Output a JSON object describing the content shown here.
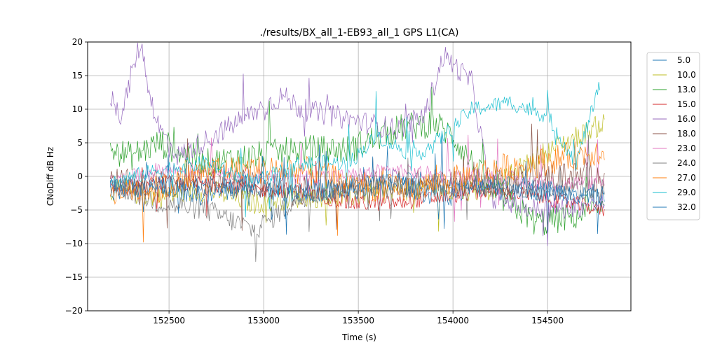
{
  "chart_data": {
    "type": "line",
    "title": "./results/BX_all_1-EB93_all_1 GPS L1(CA)",
    "xlabel": "Time (s)",
    "ylabel": "CNoDiff dB Hz",
    "xlim": [
      152070,
      154940
    ],
    "ylim": [
      -20,
      20
    ],
    "x_ticks": [
      152500,
      153000,
      153500,
      154000,
      154500
    ],
    "y_ticks": [
      -20,
      -15,
      -10,
      -5,
      0,
      5,
      10,
      15,
      20
    ],
    "grid": true,
    "legend_position": "outside-right",
    "series": [
      {
        "name": "5.0",
        "color": "#1f77b4",
        "x": [
          152190,
          152450,
          152700,
          152950,
          153200,
          153450,
          153700,
          153950,
          154200,
          154450,
          154800
        ],
        "y": [
          -1,
          -2,
          -1,
          -2,
          -3,
          -2,
          0,
          -1,
          -2,
          -2,
          -3
        ]
      },
      {
        "name": "10.0",
        "color": "#bcbd22",
        "x": [
          152190,
          152450,
          152700,
          152950,
          153200,
          153450,
          153700,
          153950,
          154200,
          154450,
          154800
        ],
        "y": [
          -2,
          -3,
          -2,
          -4,
          -3,
          -3,
          -2,
          -2,
          -2,
          3,
          8
        ]
      },
      {
        "name": "13.0",
        "color": "#2ca02c",
        "x": [
          152190,
          152300,
          152450,
          152700,
          152950,
          153200,
          153450,
          153700,
          153900,
          154000,
          154200,
          154450,
          154800
        ],
        "y": [
          4,
          3,
          5,
          2,
          3,
          4,
          4,
          7,
          8,
          6,
          -2,
          -7,
          -5
        ]
      },
      {
        "name": "15.0",
        "color": "#d62728",
        "x": [
          152190,
          152450,
          152700,
          152950,
          153200,
          153450,
          153700,
          153950,
          154200,
          154450,
          154800
        ],
        "y": [
          -2,
          -1,
          -1,
          -2,
          -2,
          -4,
          -4,
          -3,
          -2,
          -3,
          -5
        ]
      },
      {
        "name": "16.0",
        "color": "#9467bd",
        "x": [
          152190,
          152250,
          152300,
          152350,
          152400,
          152450,
          152550,
          153100,
          153200,
          153700,
          153850,
          153950,
          154100,
          154200,
          154450,
          154800
        ],
        "y": [
          12,
          9,
          15,
          20,
          12,
          7,
          3,
          12,
          10,
          7,
          9,
          18,
          14,
          -3,
          -5,
          -4
        ]
      },
      {
        "name": "18.0",
        "color": "#8c564b",
        "x": [
          152190,
          152450,
          152700,
          152950,
          153200,
          153450,
          153700,
          153950,
          154200,
          154450,
          154800
        ],
        "y": [
          -1,
          -1,
          -1,
          -1,
          -2,
          -2,
          -1,
          -1,
          -1,
          0,
          0
        ]
      },
      {
        "name": "23.0",
        "color": "#e377c2",
        "x": [
          152190,
          152450,
          152700,
          152950,
          153200,
          153450,
          153700,
          153950,
          154200,
          154450,
          154800
        ],
        "y": [
          -1,
          1,
          1,
          0,
          0,
          0,
          1,
          0,
          0,
          -1,
          -1
        ]
      },
      {
        "name": "24.0",
        "color": "#7f7f7f",
        "x": [
          152190,
          152450,
          152700,
          152950,
          153200,
          153450,
          153700,
          153950,
          154200,
          154450,
          154800
        ],
        "y": [
          -1,
          -4,
          -5,
          -8,
          -3,
          -1,
          -2,
          -1,
          -1,
          -2,
          -2
        ]
      },
      {
        "name": "27.0",
        "color": "#ff7f0e",
        "x": [
          152190,
          152450,
          152700,
          152950,
          153200,
          153450,
          153700,
          153950,
          154200,
          154450,
          154800
        ],
        "y": [
          -2,
          -2,
          1,
          1,
          1,
          -1,
          -2,
          -1,
          1,
          2,
          4
        ]
      },
      {
        "name": "29.0",
        "color": "#17becf",
        "x": [
          152190,
          152450,
          152700,
          152950,
          153200,
          153450,
          153600,
          153800,
          153950,
          154100,
          154300,
          154500,
          154650,
          154780
        ],
        "y": [
          -1,
          1,
          2,
          -1,
          2,
          2,
          6,
          3,
          6,
          10,
          11,
          9,
          2,
          14
        ]
      },
      {
        "name": "32.0",
        "color": "#1f77b4",
        "x": [
          152190,
          152450,
          152700,
          152950,
          153200,
          153450,
          153700,
          153950,
          154200,
          154450,
          154800
        ],
        "y": [
          -2,
          -1,
          -3,
          -1,
          -2,
          -2,
          -1,
          -3,
          -1,
          -2,
          -3
        ]
      }
    ]
  }
}
